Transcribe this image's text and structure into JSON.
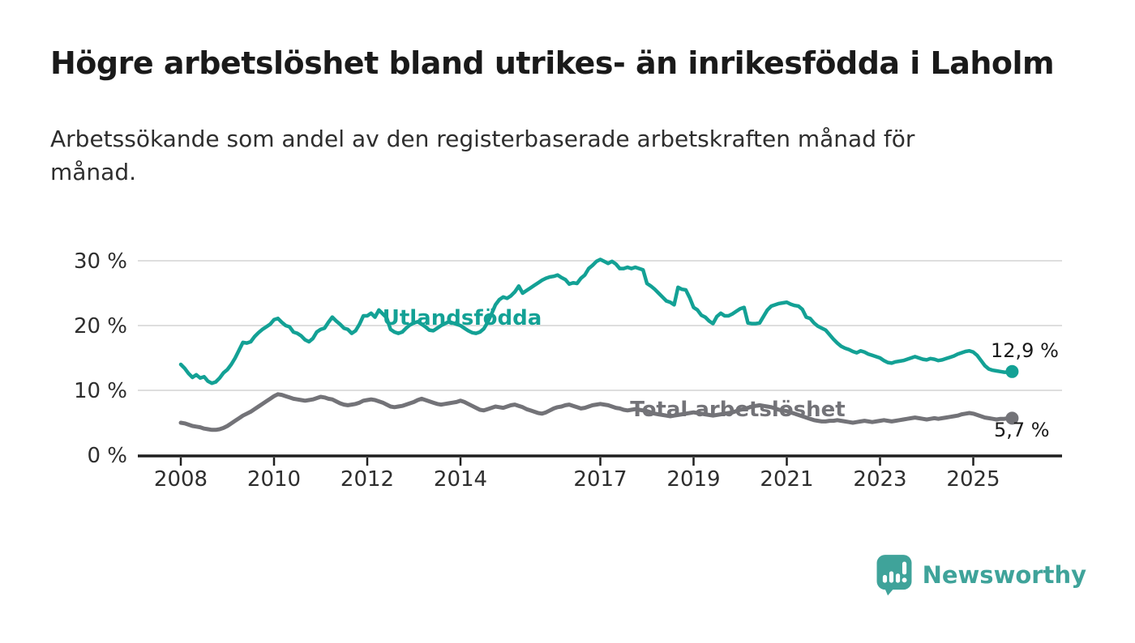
{
  "header": {
    "title": "Högre arbetslöshet bland utrikes- än inrikesfödda i Laholm",
    "subtitle": "Arbetssökande som andel av den registerbaserade arbetskraften månad för månad."
  },
  "branding": {
    "name": "Newsworthy",
    "icon": "bar-chart-speech-bubble-icon",
    "color": "#3fa39a"
  },
  "colors": {
    "foreign_born_line": "#13a195",
    "total_line": "#737378",
    "gridline": "#dedede",
    "axis": "#1f1f1f",
    "tick_text": "#2e2e2e",
    "value_text": "#1a1a1a",
    "background": "#ffffff"
  },
  "chart_data": {
    "type": "line",
    "title": "Högre arbetslöshet bland utrikes- än inrikesfödda i Laholm",
    "subtitle": "Arbetssökande som andel av den registerbaserade arbetskraften månad för månad.",
    "unit": "%",
    "x_start_year": 2008,
    "x_resolution": "monthly",
    "x_end_label_period": "2025-11",
    "grid": "horizontal",
    "legend": "inline-labels",
    "x_axis": {
      "ticks": [
        2008,
        2010,
        2012,
        2014,
        2017,
        2019,
        2021,
        2023,
        2025
      ]
    },
    "y_axis": {
      "ticks": [
        0,
        10,
        20,
        30
      ],
      "tick_labels": [
        "0 %",
        "10 %",
        "20 %",
        "30 %"
      ],
      "range": [
        0,
        31.5
      ]
    },
    "series": [
      {
        "name": "Utlandsfödda",
        "color": "#13a195",
        "end_value": 12.9,
        "end_label": "12,9 %",
        "values": [
          14.0,
          13.4,
          12.6,
          12.0,
          12.4,
          11.9,
          12.1,
          11.4,
          11.1,
          11.3,
          11.9,
          12.7,
          13.2,
          14.0,
          15.0,
          16.2,
          17.4,
          17.3,
          17.5,
          18.3,
          18.9,
          19.4,
          19.8,
          20.2,
          20.9,
          21.1,
          20.5,
          20.0,
          19.8,
          19.0,
          18.8,
          18.4,
          17.8,
          17.5,
          18.0,
          19.0,
          19.4,
          19.6,
          20.5,
          21.3,
          20.7,
          20.2,
          19.6,
          19.4,
          18.8,
          19.2,
          20.2,
          21.5,
          21.5,
          21.9,
          21.3,
          22.4,
          21.8,
          21.2,
          19.4,
          19.0,
          18.8,
          19.0,
          19.6,
          20.1,
          20.4,
          20.6,
          20.2,
          19.8,
          19.3,
          19.2,
          19.6,
          20.0,
          20.3,
          20.6,
          20.4,
          20.2,
          20.0,
          19.6,
          19.2,
          18.9,
          18.8,
          19.0,
          19.5,
          20.5,
          21.8,
          23.2,
          24.0,
          24.4,
          24.2,
          24.6,
          25.2,
          26.1,
          25.0,
          25.4,
          25.8,
          26.2,
          26.6,
          27.0,
          27.3,
          27.5,
          27.6,
          27.8,
          27.4,
          27.1,
          26.4,
          26.6,
          26.5,
          27.3,
          27.8,
          28.8,
          29.3,
          29.9,
          30.2,
          29.9,
          29.6,
          29.9,
          29.5,
          28.8,
          28.8,
          29.0,
          28.8,
          29.0,
          28.8,
          28.6,
          26.5,
          26.1,
          25.6,
          25.0,
          24.4,
          23.8,
          23.6,
          23.2,
          25.9,
          25.6,
          25.5,
          24.3,
          22.8,
          22.4,
          21.6,
          21.3,
          20.7,
          20.3,
          21.4,
          21.9,
          21.5,
          21.5,
          21.8,
          22.2,
          22.6,
          22.8,
          20.4,
          20.3,
          20.3,
          20.4,
          21.4,
          22.4,
          23.0,
          23.2,
          23.4,
          23.5,
          23.6,
          23.3,
          23.1,
          23.0,
          22.5,
          21.3,
          21.1,
          20.4,
          19.9,
          19.6,
          19.3,
          18.6,
          17.9,
          17.3,
          16.8,
          16.5,
          16.3,
          16.0,
          15.8,
          16.1,
          15.9,
          15.6,
          15.4,
          15.2,
          15.0,
          14.6,
          14.3,
          14.2,
          14.4,
          14.5,
          14.6,
          14.8,
          15.0,
          15.2,
          15.0,
          14.8,
          14.7,
          14.9,
          14.8,
          14.6,
          14.7,
          14.9,
          15.1,
          15.3,
          15.6,
          15.8,
          16.0,
          16.1,
          15.9,
          15.4,
          14.6,
          13.8,
          13.3,
          13.1,
          13.0,
          12.9,
          12.8,
          12.8,
          12.9
        ]
      },
      {
        "name": "Total arbetslöshet",
        "color": "#737378",
        "end_value": 5.7,
        "end_label": "5,7 %",
        "values": [
          5.0,
          4.9,
          4.7,
          4.5,
          4.4,
          4.3,
          4.1,
          4.0,
          3.9,
          3.9,
          4.0,
          4.2,
          4.5,
          4.9,
          5.3,
          5.7,
          6.1,
          6.4,
          6.7,
          7.1,
          7.5,
          7.9,
          8.3,
          8.7,
          9.1,
          9.4,
          9.3,
          9.1,
          8.9,
          8.7,
          8.6,
          8.5,
          8.4,
          8.5,
          8.6,
          8.8,
          9.0,
          8.9,
          8.7,
          8.6,
          8.3,
          8.0,
          7.8,
          7.7,
          7.8,
          7.9,
          8.1,
          8.4,
          8.5,
          8.6,
          8.5,
          8.3,
          8.1,
          7.8,
          7.5,
          7.4,
          7.5,
          7.6,
          7.8,
          8.0,
          8.2,
          8.5,
          8.7,
          8.5,
          8.3,
          8.1,
          7.9,
          7.8,
          7.9,
          8.0,
          8.1,
          8.2,
          8.4,
          8.2,
          7.9,
          7.6,
          7.3,
          7.0,
          6.9,
          7.1,
          7.3,
          7.5,
          7.4,
          7.3,
          7.5,
          7.7,
          7.8,
          7.6,
          7.4,
          7.1,
          6.9,
          6.7,
          6.5,
          6.4,
          6.6,
          6.9,
          7.2,
          7.4,
          7.5,
          7.7,
          7.8,
          7.6,
          7.4,
          7.2,
          7.3,
          7.5,
          7.7,
          7.8,
          7.9,
          7.8,
          7.7,
          7.5,
          7.3,
          7.2,
          7.0,
          6.9,
          7.0,
          7.1,
          7.0,
          6.9,
          6.8,
          6.6,
          6.4,
          6.3,
          6.2,
          6.1,
          6.0,
          6.1,
          6.2,
          6.3,
          6.4,
          6.5,
          6.6,
          6.5,
          6.4,
          6.3,
          6.2,
          6.1,
          6.2,
          6.3,
          6.4,
          6.5,
          6.6,
          6.8,
          7.0,
          7.1,
          7.3,
          7.5,
          7.6,
          7.7,
          7.6,
          7.5,
          7.4,
          7.2,
          7.0,
          6.9,
          6.8,
          6.6,
          6.4,
          6.2,
          6.0,
          5.8,
          5.6,
          5.4,
          5.3,
          5.2,
          5.2,
          5.3,
          5.3,
          5.4,
          5.3,
          5.2,
          5.1,
          5.0,
          5.1,
          5.2,
          5.3,
          5.2,
          5.1,
          5.2,
          5.3,
          5.4,
          5.3,
          5.2,
          5.3,
          5.4,
          5.5,
          5.6,
          5.7,
          5.8,
          5.7,
          5.6,
          5.5,
          5.6,
          5.7,
          5.6,
          5.7,
          5.8,
          5.9,
          6.0,
          6.1,
          6.3,
          6.4,
          6.5,
          6.4,
          6.2,
          6.0,
          5.8,
          5.7,
          5.6,
          5.5,
          5.6,
          5.6,
          5.7,
          5.7
        ]
      }
    ]
  }
}
